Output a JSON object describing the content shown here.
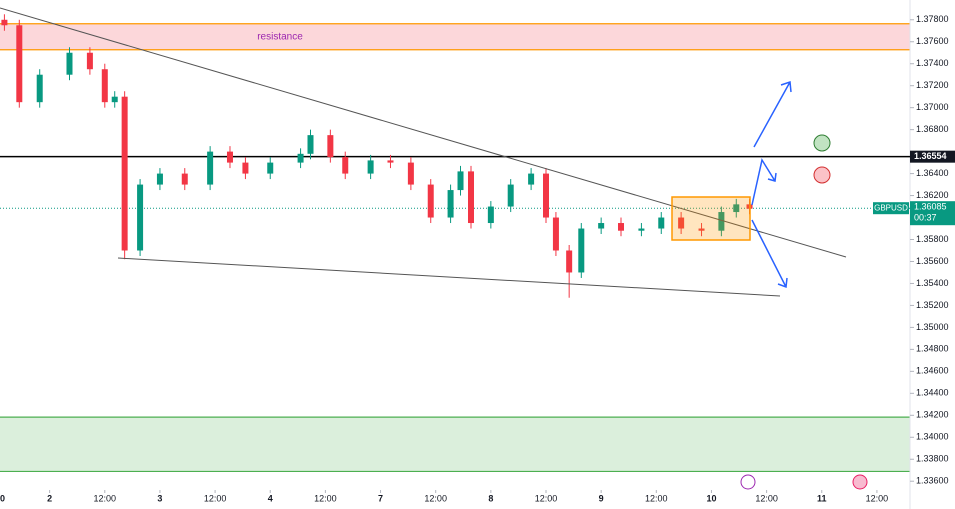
{
  "chart_data": {
    "type": "candlestick",
    "symbol": "GBPUSD",
    "countdown": "00:37",
    "xlim": [
      0.1,
      16.6
    ],
    "xticks": [
      {
        "value": 0,
        "label": "0"
      },
      {
        "value": 1,
        "label": "2"
      },
      {
        "value": 2,
        "label": "12:00"
      },
      {
        "value": 3,
        "label": "3"
      },
      {
        "value": 4,
        "label": "12:00"
      },
      {
        "value": 5,
        "label": "4"
      },
      {
        "value": 6,
        "label": "12:00"
      },
      {
        "value": 7,
        "label": "7"
      },
      {
        "value": 8,
        "label": "12:00"
      },
      {
        "value": 9,
        "label": "8"
      },
      {
        "value": 10,
        "label": "12:00"
      },
      {
        "value": 11,
        "label": "9"
      },
      {
        "value": 12,
        "label": "12:00"
      },
      {
        "value": 13,
        "label": "10"
      },
      {
        "value": 14,
        "label": "12:00"
      },
      {
        "value": 15,
        "label": "11"
      },
      {
        "value": 16,
        "label": "12:00"
      }
    ],
    "ylim": [
      1.3352,
      1.3798
    ],
    "yticks": [
      {
        "value": 1.336,
        "label": "1.33600"
      },
      {
        "value": 1.338,
        "label": "1.33800"
      },
      {
        "value": 1.34,
        "label": "1.34000"
      },
      {
        "value": 1.342,
        "label": "1.34200"
      },
      {
        "value": 1.344,
        "label": "1.34400"
      },
      {
        "value": 1.346,
        "label": "1.34600"
      },
      {
        "value": 1.348,
        "label": "1.34800"
      },
      {
        "value": 1.35,
        "label": "1.35000"
      },
      {
        "value": 1.352,
        "label": "1.35200"
      },
      {
        "value": 1.354,
        "label": "1.35400"
      },
      {
        "value": 1.356,
        "label": "1.35600"
      },
      {
        "value": 1.358,
        "label": "1.35800"
      },
      {
        "value": 1.362,
        "label": "1.36200"
      },
      {
        "value": 1.364,
        "label": "1.36400"
      },
      {
        "value": 1.368,
        "label": "1.36800"
      },
      {
        "value": 1.37,
        "label": "1.37000"
      },
      {
        "value": 1.372,
        "label": "1.37200"
      },
      {
        "value": 1.374,
        "label": "1.37400"
      },
      {
        "value": 1.376,
        "label": "1.37600"
      },
      {
        "value": 1.378,
        "label": "1.37800"
      }
    ],
    "up_color": "#089981",
    "down_color": "#f23645",
    "x": [
      0.18,
      0.45,
      0.82,
      1.36,
      1.73,
      2.0,
      2.18,
      2.36,
      2.64,
      3.0,
      3.45,
      3.91,
      4.27,
      4.55,
      5.0,
      5.55,
      5.73,
      6.09,
      6.36,
      6.82,
      7.18,
      7.55,
      7.91,
      8.27,
      8.45,
      8.64,
      9.0,
      9.36,
      9.73,
      10.0,
      10.18,
      10.42,
      10.64,
      11.0,
      11.36,
      11.73,
      12.09,
      12.45,
      12.82,
      13.18,
      13.45,
      13.69
    ],
    "open": [
      1.378,
      1.3775,
      1.3705,
      1.373,
      1.375,
      1.3735,
      1.3705,
      1.371,
      1.357,
      1.363,
      1.364,
      1.363,
      1.366,
      1.365,
      1.364,
      1.365,
      1.3658,
      1.3675,
      1.3655,
      1.364,
      1.3652,
      1.365,
      1.363,
      1.36,
      1.3625,
      1.3642,
      1.3595,
      1.361,
      1.363,
      1.364,
      1.36,
      1.357,
      1.355,
      1.359,
      1.3595,
      1.3588,
      1.359,
      1.36,
      1.359,
      1.3588,
      1.3605,
      1.3612
    ],
    "high": [
      1.3785,
      1.378,
      1.3735,
      1.3755,
      1.3755,
      1.374,
      1.3715,
      1.3715,
      1.3635,
      1.3645,
      1.3645,
      1.3665,
      1.3665,
      1.3655,
      1.3655,
      1.3663,
      1.368,
      1.368,
      1.366,
      1.3657,
      1.3657,
      1.3655,
      1.3635,
      1.363,
      1.3647,
      1.3647,
      1.3615,
      1.3635,
      1.3645,
      1.3645,
      1.3605,
      1.3575,
      1.3595,
      1.36,
      1.36,
      1.3595,
      1.3605,
      1.3605,
      1.3595,
      1.361,
      1.3617,
      1.3617
    ],
    "low": [
      1.377,
      1.37,
      1.37,
      1.3725,
      1.373,
      1.37,
      1.37,
      1.3562,
      1.3565,
      1.3625,
      1.3625,
      1.3625,
      1.3645,
      1.3635,
      1.3635,
      1.3645,
      1.3653,
      1.365,
      1.3635,
      1.3635,
      1.3645,
      1.3625,
      1.3595,
      1.3595,
      1.362,
      1.359,
      1.359,
      1.3605,
      1.3625,
      1.3595,
      1.3565,
      1.3527,
      1.3545,
      1.3585,
      1.3583,
      1.3583,
      1.3585,
      1.3585,
      1.3583,
      1.3583,
      1.36,
      1.3603
    ],
    "close": [
      1.3775,
      1.3705,
      1.373,
      1.375,
      1.3735,
      1.3705,
      1.371,
      1.357,
      1.363,
      1.364,
      1.363,
      1.366,
      1.365,
      1.364,
      1.365,
      1.3658,
      1.3675,
      1.3655,
      1.364,
      1.3652,
      1.365,
      1.363,
      1.36,
      1.3625,
      1.3642,
      1.3595,
      1.361,
      1.363,
      1.364,
      1.36,
      1.357,
      1.355,
      1.359,
      1.3595,
      1.3588,
      1.359,
      1.36,
      1.359,
      1.3588,
      1.3605,
      1.3612,
      1.3608
    ],
    "resistance_zone": {
      "range": [
        1.37527,
        1.37764
      ],
      "label": "resistance",
      "color": "#f23645"
    },
    "support_zone": {
      "range": [
        1.33689,
        1.34183
      ],
      "color": "#4caf50"
    },
    "level": {
      "value": 1.36554,
      "label": "1.36554"
    },
    "last_price": {
      "value": 1.36085,
      "label": "1.36085"
    }
  }
}
